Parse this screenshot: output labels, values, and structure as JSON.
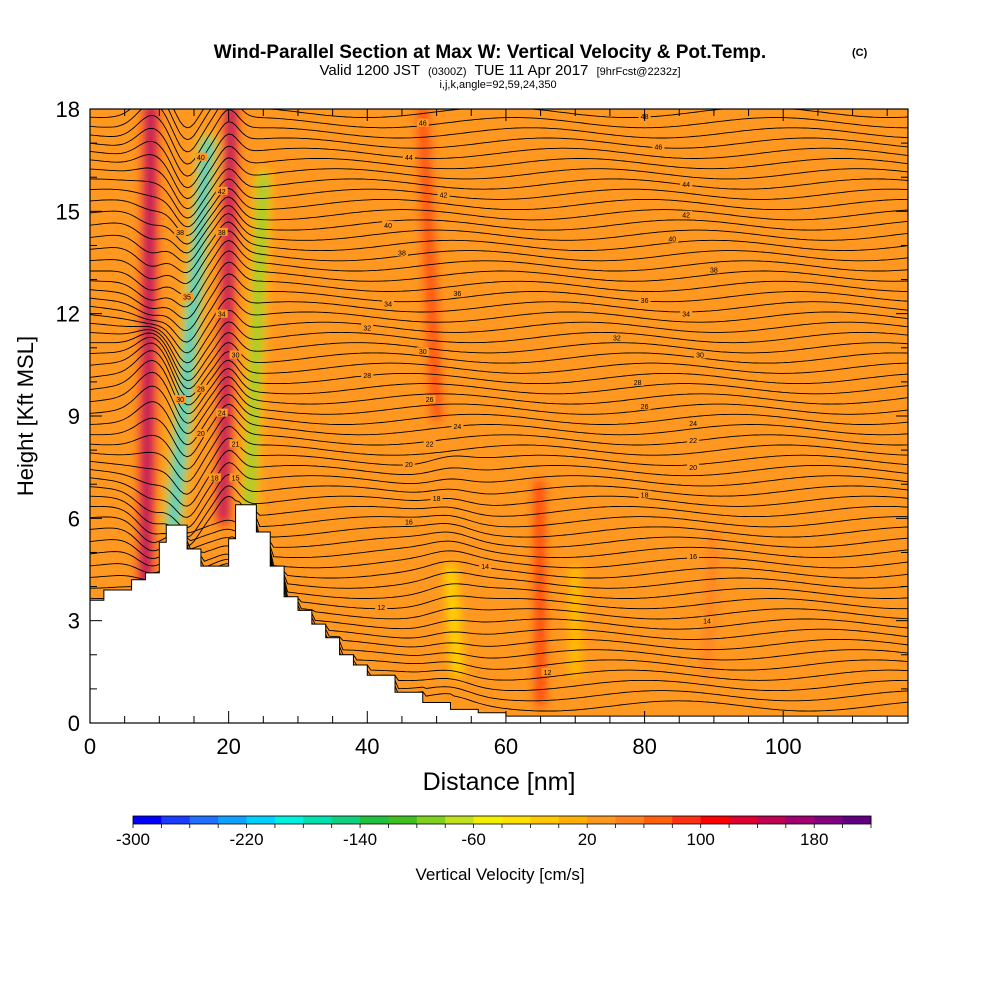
{
  "title": "Wind-Parallel Section at Max W: Vertical Velocity & Pot.Temp.",
  "title_mark": "(C)",
  "subtitle": {
    "valid": "Valid 1200 JST",
    "utc": "(0300Z)",
    "date": "TUE 11 Apr 2017",
    "forecast": "[9hrFcst@2232z]"
  },
  "params": "i,j,k,angle=92,59,24,350",
  "chart_data": {
    "type": "heatmap",
    "xlabel": "Distance [nm]",
    "ylabel": "Height [Kft MSL]",
    "xlim": [
      0,
      118
    ],
    "ylim": [
      0,
      18
    ],
    "xticks": [
      0,
      20,
      40,
      60,
      80,
      100
    ],
    "yticks": [
      0,
      3,
      6,
      9,
      12,
      15,
      18
    ],
    "colorbar": {
      "label": "Vertical Velocity [cm/s]",
      "min": -300,
      "max": 220,
      "step": 20,
      "tick_values": [
        -300,
        -220,
        -140,
        -60,
        20,
        100,
        180
      ],
      "colors": [
        "#0000ff",
        "#1a3cff",
        "#2070ff",
        "#10a0ff",
        "#00d0ff",
        "#00f0e0",
        "#00e0b0",
        "#10d080",
        "#20c040",
        "#40c020",
        "#80d020",
        "#c0e020",
        "#f0f000",
        "#ffe000",
        "#ffc800",
        "#ffb000",
        "#ff9820",
        "#ff8020",
        "#ff6010",
        "#ff3010",
        "#ff0000",
        "#e00030",
        "#c00050",
        "#a00070",
        "#800080",
        "#600080"
      ]
    },
    "background_value": 20,
    "terrain_profile": {
      "x": [
        0,
        2,
        4,
        6,
        8,
        10,
        11,
        13,
        14,
        16,
        18,
        20,
        21,
        23,
        24,
        26,
        28,
        30,
        32,
        34,
        36,
        38,
        40,
        44,
        48,
        52,
        56,
        60,
        118
      ],
      "height": [
        3.6,
        3.9,
        3.9,
        4.2,
        4.4,
        5.3,
        5.8,
        5.8,
        5.1,
        4.6,
        4.6,
        5.4,
        6.4,
        6.4,
        5.6,
        4.6,
        3.7,
        3.3,
        2.9,
        2.5,
        2.0,
        1.7,
        1.4,
        0.9,
        0.6,
        0.4,
        0.3,
        0.2,
        0.1
      ]
    },
    "features": [
      {
        "name": "updraft",
        "x0": 8,
        "y0": 3.5,
        "x1": 8.8,
        "y1": 18,
        "width": 2.4,
        "value": 180
      },
      {
        "name": "downdraft",
        "x0": 12,
        "y0": 5.8,
        "x1": 17,
        "y1": 17,
        "width": 2.8,
        "value": -220
      },
      {
        "name": "updraft",
        "x0": 19.2,
        "y0": 6.0,
        "x1": 20.4,
        "y1": 18,
        "width": 2.2,
        "value": 180
      },
      {
        "name": "downdraft",
        "x0": 23,
        "y0": 6.3,
        "x1": 25,
        "y1": 16,
        "width": 2.2,
        "value": -140
      },
      {
        "name": "updraft",
        "x0": 50,
        "y0": 9.0,
        "x1": 48,
        "y1": 18,
        "width": 3.0,
        "value": 80
      },
      {
        "name": "updraft",
        "x0": 65,
        "y0": 0.6,
        "x1": 64.8,
        "y1": 7.0,
        "width": 1.8,
        "value": 100
      },
      {
        "name": "updraft",
        "x0": 89,
        "y0": 1.5,
        "x1": 90,
        "y1": 5.5,
        "width": 5.0,
        "value": 40
      },
      {
        "name": "downdraft",
        "x0": 53,
        "y0": 1.5,
        "x1": 52,
        "y1": 4.5,
        "width": 2.0,
        "value": -40
      },
      {
        "name": "downdraft",
        "x0": 70,
        "y0": 1.5,
        "x1": 70,
        "y1": 4.5,
        "width": 1.8,
        "value": -20
      }
    ],
    "isentrope_labels": [
      {
        "x": 48,
        "y": 17.6,
        "text": "46"
      },
      {
        "x": 80,
        "y": 17.8,
        "text": "48"
      },
      {
        "x": 46,
        "y": 16.6,
        "text": "44"
      },
      {
        "x": 82,
        "y": 16.9,
        "text": "46"
      },
      {
        "x": 51,
        "y": 15.5,
        "text": "42"
      },
      {
        "x": 86,
        "y": 15.8,
        "text": "44"
      },
      {
        "x": 43,
        "y": 14.6,
        "text": "40"
      },
      {
        "x": 86,
        "y": 14.9,
        "text": "42"
      },
      {
        "x": 45,
        "y": 13.8,
        "text": "38"
      },
      {
        "x": 84,
        "y": 14.2,
        "text": "40"
      },
      {
        "x": 53,
        "y": 12.6,
        "text": "36"
      },
      {
        "x": 90,
        "y": 13.3,
        "text": "38"
      },
      {
        "x": 43,
        "y": 12.3,
        "text": "34"
      },
      {
        "x": 80,
        "y": 12.4,
        "text": "36"
      },
      {
        "x": 40,
        "y": 11.6,
        "text": "32"
      },
      {
        "x": 86,
        "y": 12.0,
        "text": "34"
      },
      {
        "x": 48,
        "y": 10.9,
        "text": "30"
      },
      {
        "x": 76,
        "y": 11.3,
        "text": "32"
      },
      {
        "x": 40,
        "y": 10.2,
        "text": "28"
      },
      {
        "x": 88,
        "y": 10.8,
        "text": "30"
      },
      {
        "x": 79,
        "y": 10.0,
        "text": "28"
      },
      {
        "x": 49,
        "y": 9.5,
        "text": "26"
      },
      {
        "x": 80,
        "y": 9.3,
        "text": "26"
      },
      {
        "x": 53,
        "y": 8.7,
        "text": "24"
      },
      {
        "x": 87,
        "y": 8.8,
        "text": "24"
      },
      {
        "x": 49,
        "y": 8.2,
        "text": "22"
      },
      {
        "x": 87,
        "y": 8.3,
        "text": "22"
      },
      {
        "x": 46,
        "y": 7.6,
        "text": "20"
      },
      {
        "x": 87,
        "y": 7.5,
        "text": "20"
      },
      {
        "x": 50,
        "y": 6.6,
        "text": "18"
      },
      {
        "x": 80,
        "y": 6.7,
        "text": "18"
      },
      {
        "x": 46,
        "y": 5.9,
        "text": "16"
      },
      {
        "x": 87,
        "y": 4.9,
        "text": "16"
      },
      {
        "x": 57,
        "y": 4.6,
        "text": "14"
      },
      {
        "x": 89,
        "y": 3.0,
        "text": "14"
      },
      {
        "x": 42,
        "y": 3.4,
        "text": "12"
      },
      {
        "x": 66,
        "y": 1.5,
        "text": "12"
      },
      {
        "x": 13,
        "y": 9.5,
        "text": "30"
      },
      {
        "x": 16,
        "y": 8.5,
        "text": "20"
      },
      {
        "x": 19,
        "y": 9.1,
        "text": "24"
      },
      {
        "x": 21,
        "y": 8.2,
        "text": "21"
      },
      {
        "x": 18,
        "y": 7.2,
        "text": "18"
      },
      {
        "x": 21,
        "y": 7.2,
        "text": "15"
      },
      {
        "x": 14,
        "y": 12.5,
        "text": "35"
      },
      {
        "x": 13,
        "y": 14.4,
        "text": "38"
      },
      {
        "x": 16,
        "y": 16.6,
        "text": "40"
      },
      {
        "x": 19,
        "y": 15.6,
        "text": "42"
      },
      {
        "x": 19,
        "y": 14.4,
        "text": "38"
      },
      {
        "x": 19,
        "y": 12.0,
        "text": "34"
      },
      {
        "x": 21,
        "y": 10.8,
        "text": "30"
      },
      {
        "x": 16,
        "y": 9.8,
        "text": "28"
      }
    ]
  }
}
